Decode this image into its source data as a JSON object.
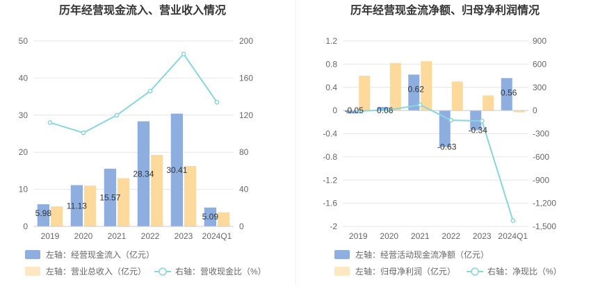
{
  "chart_data": [
    {
      "type": "bar+line",
      "title": "历年经营现金流入、营业收入情况",
      "categories": [
        "2019",
        "2020",
        "2021",
        "2022",
        "2023",
        "2024Q1"
      ],
      "left_axis": {
        "min": 0,
        "max": 50,
        "ticks": [
          "0",
          "10",
          "20",
          "30",
          "40",
          "50"
        ]
      },
      "right_axis": {
        "min": 0,
        "max": 200,
        "ticks": [
          "0",
          "40",
          "80",
          "120",
          "160",
          "200"
        ]
      },
      "series": [
        {
          "name": "左轴：经营现金流入（亿元）",
          "kind": "bar",
          "axis": "left",
          "color": "#8eaee0",
          "values": [
            5.98,
            11.13,
            15.57,
            28.34,
            30.41,
            5.09
          ],
          "labels": [
            "5.98",
            "11.13",
            "15.57",
            "28.34",
            "30.41",
            "5.09"
          ]
        },
        {
          "name": "左轴：营业总收入（亿元）",
          "kind": "bar",
          "axis": "left",
          "color": "#fdd99b",
          "values": [
            5.4,
            11.0,
            13.0,
            19.3,
            16.3,
            3.8
          ]
        },
        {
          "name": "右轴：营收现金比（%）",
          "kind": "line",
          "axis": "right",
          "color": "#86d6de",
          "values": [
            112,
            101,
            120,
            146,
            186,
            134
          ]
        }
      ]
    },
    {
      "type": "bar+line",
      "title": "历年经营现金流净额、归母净利润情况",
      "categories": [
        "2019",
        "2020",
        "2021",
        "2022",
        "2023",
        "2024Q1"
      ],
      "left_axis": {
        "min": -2,
        "max": 1.2,
        "ticks": [
          "-2",
          "-1.6",
          "-1.2",
          "-0.8",
          "-0.4",
          "0",
          "0.4",
          "0.8",
          "1.2"
        ]
      },
      "right_axis": {
        "min": -1500,
        "max": 900,
        "ticks": [
          "-1,500",
          "-1,200",
          "-900",
          "-600",
          "-300",
          "0",
          "300",
          "600",
          "900"
        ]
      },
      "series": [
        {
          "name": "左轴：经营活动现金流净额（亿元）",
          "kind": "bar",
          "axis": "left",
          "color": "#8eaee0",
          "values": [
            -0.05,
            0.06,
            0.62,
            -0.63,
            -0.34,
            0.56
          ],
          "labels": [
            "-0.05",
            "0.06",
            "0.62",
            "-0.63",
            "-0.34",
            "0.56"
          ]
        },
        {
          "name": "左轴：归母净利润（亿元）",
          "kind": "bar",
          "axis": "left",
          "color": "#fdd99b",
          "values": [
            0.6,
            0.82,
            0.85,
            0.5,
            0.26,
            -0.03
          ]
        },
        {
          "name": "右轴：净现比（%）",
          "kind": "line",
          "axis": "right",
          "color": "#86d6de",
          "values": [
            -8,
            8,
            73,
            -126,
            -135,
            -1425
          ]
        }
      ]
    }
  ]
}
